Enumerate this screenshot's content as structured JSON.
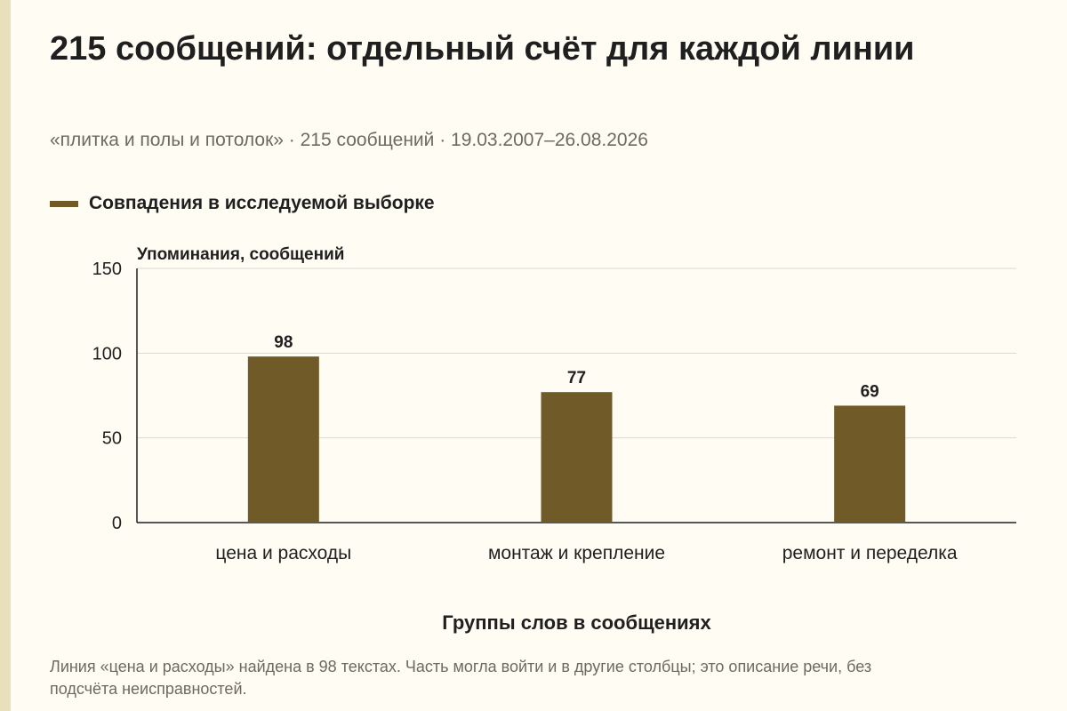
{
  "title": "215 сообщений: отдельный счёт для каждой линии",
  "subtitle": "«плитка и полы и потолок» · 215 сообщений · 19.03.2007–26.08.2026",
  "footnote": "Линия «цена и расходы» найдена в 98 текстах. Часть могла войти и в другие столбцы; это описание речи, без подсчёта неисправностей.",
  "colors": {
    "bar": "#705a27",
    "grid": "#d9d9d2",
    "axis": "#1f1f1f",
    "background": "#fefcf3"
  },
  "chart_data": {
    "type": "bar",
    "categories": [
      "цена и расходы",
      "монтаж и крепление",
      "ремонт и переделка"
    ],
    "series": [
      {
        "name": "Совпадения в исследуемой выборке",
        "values": [
          98,
          77,
          69
        ]
      }
    ],
    "ylabel": "Упоминания, сообщений",
    "xlabel": "Группы слов в сообщениях",
    "ylim": [
      0,
      150
    ],
    "yticks": [
      0,
      50,
      100,
      150
    ],
    "grid": true,
    "legend": "top-left"
  }
}
